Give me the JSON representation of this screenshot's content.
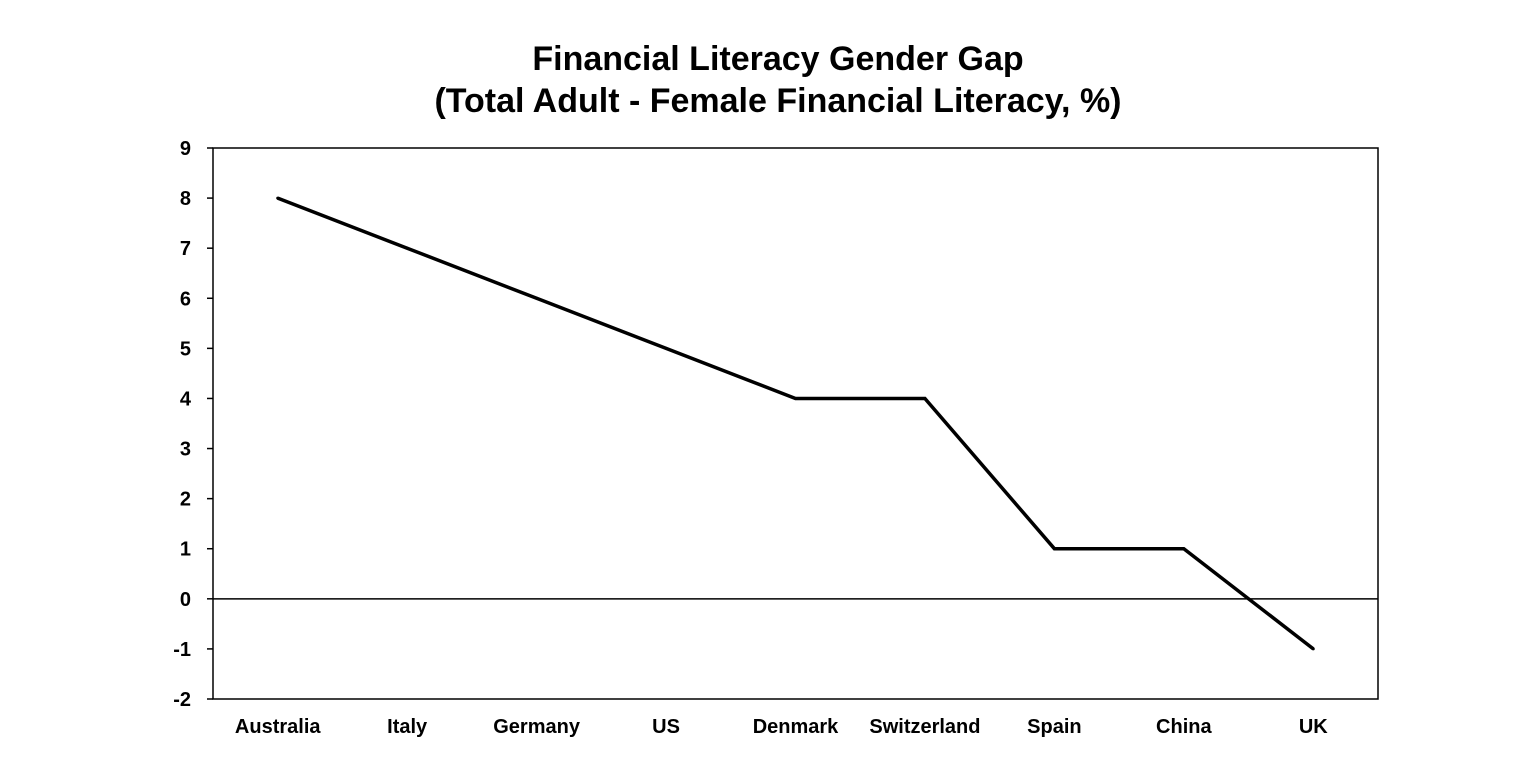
{
  "chart_data": {
    "type": "line",
    "title": "Financial Literacy Gender Gap",
    "subtitle": "(Total Adult - Female Financial Literacy, %)",
    "categories": [
      "Australia",
      "Italy",
      "Germany",
      "US",
      "Denmark",
      "Switzerland",
      "Spain",
      "China",
      "UK"
    ],
    "series": [
      {
        "values": [
          8,
          7,
          6,
          5,
          4,
          4,
          1,
          1,
          -1
        ]
      }
    ],
    "ylim": [
      -2,
      9
    ],
    "yticks": [
      "9",
      "8",
      "7",
      "6",
      "5",
      "4",
      "3",
      "2",
      "1",
      "0",
      "-1",
      "-2"
    ],
    "grid": false,
    "legend": "none",
    "line_color": "#000000"
  }
}
